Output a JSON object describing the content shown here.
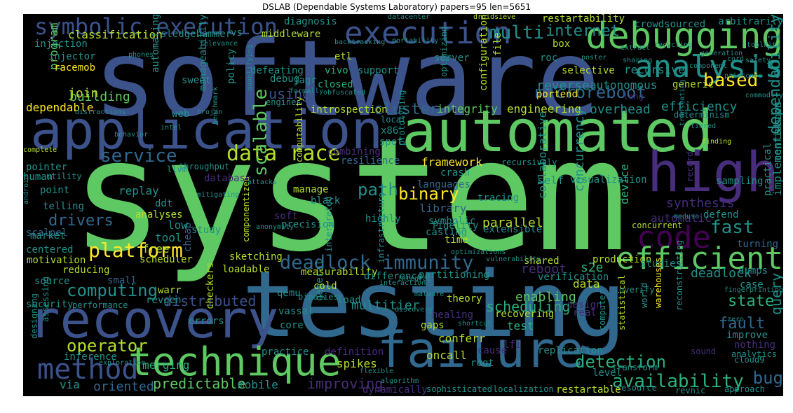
{
  "title": "DSLAB (Dependable Systems Laboratory) papers=95 len=5651",
  "palette": {
    "green": "#5ec962",
    "lime": "#b5de2b",
    "yellow": "#fde725",
    "teal": "#21918c",
    "teal_light": "#2ab07f",
    "blue": "#3b528b",
    "steel": "#31688e",
    "indigo": "#472d7b",
    "purple": "#440154",
    "background": "#000000"
  },
  "words": [
    {
      "text": "system",
      "color": "#5ec962"
    },
    {
      "text": "software",
      "color": "#3b528b"
    },
    {
      "text": "testing",
      "color": "#31688e"
    },
    {
      "text": "automated",
      "color": "#5ec962"
    },
    {
      "text": "application",
      "color": "#3b528b"
    },
    {
      "text": "recovery",
      "color": "#3b528b"
    },
    {
      "text": "high",
      "color": "#472d7b"
    },
    {
      "text": "failure",
      "color": "#31688e"
    },
    {
      "text": "technique",
      "color": "#5ec962"
    },
    {
      "text": "debugging",
      "color": "#5ec962"
    },
    {
      "text": "execution",
      "color": "#3b528b"
    },
    {
      "text": "analysis",
      "color": "#21918c"
    },
    {
      "text": "code",
      "color": "#440154"
    },
    {
      "text": "efficient",
      "color": "#5ec962"
    },
    {
      "text": "method",
      "color": "#3b528b"
    },
    {
      "text": "symbolic execution",
      "color": "#3b528b"
    },
    {
      "text": "deadlock immunity",
      "color": "#31688e"
    },
    {
      "text": "platform",
      "color": "#fde725"
    },
    {
      "text": "data race",
      "color": "#b5de2b"
    },
    {
      "text": "service",
      "color": "#31688e"
    },
    {
      "text": "multi",
      "color": "#21918c"
    },
    {
      "text": "internet",
      "color": "#21918c"
    },
    {
      "text": "microreboot",
      "color": "#31688e"
    },
    {
      "text": "based",
      "color": "#fde725"
    },
    {
      "text": "fast",
      "color": "#21918c"
    },
    {
      "text": "dependability",
      "color": "#21918c"
    },
    {
      "text": "scalable",
      "color": "#5ec962"
    },
    {
      "text": "path",
      "color": "#21918c"
    },
    {
      "text": "binary",
      "color": "#fde725"
    },
    {
      "text": "operator",
      "color": "#b5de2b"
    },
    {
      "text": "availability",
      "color": "#2ab07f"
    },
    {
      "text": "detection",
      "color": "#2ab07f"
    },
    {
      "text": "bug",
      "color": "#31688e"
    },
    {
      "text": "computing",
      "color": "#21918c"
    },
    {
      "text": "cluster",
      "color": "#31688e"
    },
    {
      "text": "integrity",
      "color": "#5ec962"
    },
    {
      "text": "engineering",
      "color": "#b5de2b"
    },
    {
      "text": "overhead",
      "color": "#21918c"
    },
    {
      "text": "efficiency",
      "color": "#21918c"
    },
    {
      "text": "drivers",
      "color": "#31688e"
    },
    {
      "text": "predictable",
      "color": "#5ec962"
    },
    {
      "text": "oriented",
      "color": "#31688e"
    },
    {
      "text": "improving",
      "color": "#472d7b"
    },
    {
      "text": "mobile",
      "color": "#21918c"
    },
    {
      "text": "via",
      "color": "#21918c"
    },
    {
      "text": "merging",
      "color": "#2ab07f"
    },
    {
      "text": "multitier",
      "color": "#21918c"
    },
    {
      "text": "scheduling",
      "color": "#2ab07f"
    },
    {
      "text": "enabling",
      "color": "#5ec962"
    },
    {
      "text": "distributed",
      "color": "#3b528b"
    },
    {
      "text": "state",
      "color": "#2ab07f"
    },
    {
      "text": "fault",
      "color": "#31688e"
    },
    {
      "text": "query",
      "color": "#21918c"
    },
    {
      "text": "parallel",
      "color": "#b5de2b"
    },
    {
      "text": "library",
      "color": "#31688e"
    },
    {
      "text": "reboot",
      "color": "#472d7b"
    },
    {
      "text": "s2e",
      "color": "#2ab07f"
    },
    {
      "text": "deadlock",
      "color": "#21918c"
    },
    {
      "text": "synthesis",
      "color": "#472d7b"
    },
    {
      "text": "automatic",
      "color": "#472d7b"
    },
    {
      "text": "concurrency",
      "color": "#21918c"
    },
    {
      "text": "classification",
      "color": "#b5de2b"
    },
    {
      "text": "using",
      "color": "#3b528b"
    },
    {
      "text": "program",
      "color": "#5ec962"
    },
    {
      "text": "building",
      "color": "#5ec962"
    },
    {
      "text": "join",
      "color": "#b5de2b"
    },
    {
      "text": "dependable",
      "color": "#fde725"
    },
    {
      "text": "pointer",
      "color": "#21918c"
    },
    {
      "text": "replay",
      "color": "#21918c"
    },
    {
      "text": "point",
      "color": "#21918c"
    },
    {
      "text": "telling",
      "color": "#21918c"
    },
    {
      "text": "scalpel",
      "color": "#31688e"
    },
    {
      "text": "framework",
      "color": "#fde725"
    },
    {
      "text": "self",
      "color": "#21918c"
    },
    {
      "text": "reverse",
      "color": "#21918c"
    },
    {
      "text": "autonomous",
      "color": "#21918c"
    },
    {
      "text": "portend",
      "color": "#fde725"
    },
    {
      "text": "generic",
      "color": "#b5de2b"
    },
    {
      "text": "recursive",
      "color": "#21918c"
    },
    {
      "text": "collaborative",
      "color": "#21918c"
    },
    {
      "text": "implementation",
      "color": "#21918c"
    },
    {
      "text": "confidence",
      "color": "#21918c"
    },
    {
      "text": "test",
      "color": "#2ab07f"
    },
    {
      "text": "crash",
      "color": "#21918c"
    },
    {
      "text": "sledgehammer",
      "color": "#21918c"
    },
    {
      "text": "middleware",
      "color": "#b5de2b"
    },
    {
      "text": "injection",
      "color": "#21918c"
    },
    {
      "text": "injector",
      "color": "#21918c"
    },
    {
      "text": "racemob",
      "color": "#fde725"
    },
    {
      "text": "debug",
      "color": "#21918c"
    },
    {
      "text": "policy",
      "color": "#21918c"
    },
    {
      "text": "jagr",
      "color": "#21918c"
    },
    {
      "text": "closed",
      "color": "#2ab07f"
    },
    {
      "text": "server",
      "color": "#21918c"
    },
    {
      "text": "vivo",
      "color": "#2ab07f"
    },
    {
      "text": "support",
      "color": "#21918c"
    },
    {
      "text": "introspection",
      "color": "#b5de2b"
    },
    {
      "text": "x86",
      "color": "#21918c"
    },
    {
      "text": "spot",
      "color": "#21918c"
    },
    {
      "text": "resilience",
      "color": "#31688e"
    },
    {
      "text": "combining",
      "color": "#472d7b"
    },
    {
      "text": "languages",
      "color": "#31688e"
    },
    {
      "text": "tracing",
      "color": "#21918c"
    },
    {
      "text": "visualization",
      "color": "#21918c"
    },
    {
      "text": "sampling",
      "color": "#21918c"
    },
    {
      "text": "record",
      "color": "#472d7b"
    },
    {
      "text": "device",
      "color": "#2ab07f"
    },
    {
      "text": "concurrent",
      "color": "#b5de2b"
    },
    {
      "text": "defend",
      "color": "#21918c"
    },
    {
      "text": "practical",
      "color": "#21918c"
    },
    {
      "text": "turning",
      "color": "#31688e"
    },
    {
      "text": "production",
      "color": "#b5de2b"
    },
    {
      "text": "dumps",
      "color": "#21918c"
    },
    {
      "text": "case",
      "color": "#21918c"
    },
    {
      "text": "verification",
      "color": "#21918c"
    },
    {
      "text": "shared",
      "color": "#b5de2b"
    },
    {
      "text": "design",
      "color": "#472d7b"
    },
    {
      "text": "real",
      "color": "#472d7b"
    },
    {
      "text": "studies",
      "color": "#21918c"
    },
    {
      "text": "data",
      "color": "#b5de2b"
    },
    {
      "text": "level",
      "color": "#21918c"
    },
    {
      "text": "improve",
      "color": "#21918c"
    },
    {
      "text": "nothing",
      "color": "#472d7b"
    },
    {
      "text": "analytics",
      "color": "#21918c"
    },
    {
      "text": "sound",
      "color": "#472d7b"
    },
    {
      "text": "cloud9",
      "color": "#21918c"
    },
    {
      "text": "transform",
      "color": "#21918c"
    },
    {
      "text": "resource",
      "color": "#21918c"
    },
    {
      "text": "revnic",
      "color": "#21918c"
    },
    {
      "text": "restartable",
      "color": "#b5de2b"
    },
    {
      "text": "approach",
      "color": "#21918c"
    },
    {
      "text": "localization",
      "color": "#21918c"
    },
    {
      "text": "sophisticated",
      "color": "#21918c"
    },
    {
      "text": "dynamically",
      "color": "#472d7b"
    },
    {
      "text": "replication",
      "color": "#21918c"
    },
    {
      "text": "cause",
      "color": "#472d7b"
    },
    {
      "text": "root",
      "color": "#21918c"
    },
    {
      "text": "oncall",
      "color": "#b5de2b"
    },
    {
      "text": "conferr",
      "color": "#b5de2b"
    },
    {
      "text": "spikes",
      "color": "#b5de2b"
    },
    {
      "text": "definition",
      "color": "#472d7b"
    },
    {
      "text": "general",
      "color": "#21918c"
    },
    {
      "text": "gaps",
      "color": "#b5de2b"
    },
    {
      "text": "healing",
      "color": "#472d7b"
    },
    {
      "text": "theory",
      "color": "#b5de2b"
    },
    {
      "text": "recovering",
      "color": "#b5de2b"
    },
    {
      "text": "load",
      "color": "#21918c"
    },
    {
      "text": "errors",
      "color": "#21918c"
    },
    {
      "text": "checkers",
      "color": "#b5de2b"
    },
    {
      "text": "core",
      "color": "#21918c"
    },
    {
      "text": "vassal",
      "color": "#21918c"
    },
    {
      "text": "qemu",
      "color": "#21918c"
    },
    {
      "text": "revgen",
      "color": "#21918c"
    },
    {
      "text": "warr",
      "color": "#b5de2b"
    },
    {
      "text": "small",
      "color": "#31688e"
    },
    {
      "text": "loadable",
      "color": "#b5de2b"
    },
    {
      "text": "cold",
      "color": "#b5de2b"
    },
    {
      "text": "measurability",
      "color": "#b5de2b"
    },
    {
      "text": "difference",
      "color": "#21918c"
    },
    {
      "text": "partitioning",
      "color": "#21918c"
    },
    {
      "text": "sketching",
      "color": "#b5de2b"
    },
    {
      "text": "scheduler",
      "color": "#b5de2b"
    },
    {
      "text": "cheap",
      "color": "#31688e"
    },
    {
      "text": "free",
      "color": "#b5de2b"
    },
    {
      "text": "tool",
      "color": "#21918c"
    },
    {
      "text": "low",
      "color": "#21918c"
    },
    {
      "text": "study",
      "color": "#21918c"
    },
    {
      "text": "precision",
      "color": "#21918c"
    },
    {
      "text": "soft",
      "color": "#472d7b"
    },
    {
      "text": "symbolic",
      "color": "#21918c"
    },
    {
      "text": "casting",
      "color": "#21918c"
    },
    {
      "text": "time",
      "color": "#b5de2b"
    },
    {
      "text": "fidelity",
      "color": "#21918c"
    },
    {
      "text": "extensible",
      "color": "#21918c"
    },
    {
      "text": "highly",
      "color": "#21918c"
    },
    {
      "text": "interpreted",
      "color": "#21918c"
    },
    {
      "text": "componentized",
      "color": "#b5de2b"
    },
    {
      "text": "reducing",
      "color": "#b5de2b"
    },
    {
      "text": "motivation",
      "color": "#b5de2b"
    },
    {
      "text": "source",
      "color": "#21918c"
    },
    {
      "text": "security",
      "color": "#21918c"
    },
    {
      "text": "market",
      "color": "#21918c"
    },
    {
      "text": "centered",
      "color": "#21918c"
    },
    {
      "text": "analyses",
      "color": "#b5de2b"
    },
    {
      "text": "ddt",
      "color": "#21918c"
    },
    {
      "text": "human",
      "color": "#21918c"
    },
    {
      "text": "database",
      "color": "#472d7b"
    },
    {
      "text": "manage",
      "color": "#b5de2b"
    },
    {
      "text": "black",
      "color": "#21918c"
    },
    {
      "text": "web",
      "color": "#21918c"
    },
    {
      "text": "sweet",
      "color": "#21918c"
    },
    {
      "text": "defeating",
      "color": "#21918c"
    },
    {
      "text": "etl",
      "color": "#b5de2b"
    },
    {
      "text": "diagnosis",
      "color": "#21918c"
    },
    {
      "text": "vs",
      "color": "#21918c"
    },
    {
      "text": "box",
      "color": "#b5de2b"
    },
    {
      "text": "roc",
      "color": "#21918c"
    },
    {
      "text": "selective",
      "color": "#b5de2b"
    },
    {
      "text": "file",
      "color": "#b5de2b"
    },
    {
      "text": "configuration",
      "color": "#b5de2b"
    },
    {
      "text": "optimizing",
      "color": "#21918c"
    },
    {
      "text": "crowdsourced",
      "color": "#21918c"
    },
    {
      "text": "arbitrarily",
      "color": "#21918c"
    },
    {
      "text": "restartability",
      "color": "#b5de2b"
    },
    {
      "text": "statistical",
      "color": "#b5de2b"
    },
    {
      "text": "warehouses",
      "color": "#fde725"
    },
    {
      "text": "world",
      "color": "#21918c"
    },
    {
      "text": "computer",
      "color": "#21918c"
    },
    {
      "text": "lfi",
      "color": "#472d7b"
    },
    {
      "text": "reconstructing",
      "color": "#21918c"
    },
    {
      "text": "designing",
      "color": "#21918c"
    },
    {
      "text": "assessing",
      "color": "#21918c"
    },
    {
      "text": "inference",
      "color": "#21918c"
    },
    {
      "text": "practice",
      "color": "#21918c"
    },
    {
      "text": "automating",
      "color": "#21918c"
    },
    {
      "text": "manageability",
      "color": "#21918c"
    },
    {
      "text": "utility",
      "color": "#21918c"
    },
    {
      "text": "engines",
      "color": "#21918c"
    },
    {
      "text": "complete",
      "color": "#b5de2b"
    },
    {
      "text": "finding",
      "color": "#b5de2b"
    },
    {
      "text": "long",
      "color": "#472d7b"
    },
    {
      "text": "llvm",
      "color": "#21918c"
    },
    {
      "text": "performance",
      "color": "#21918c"
    },
    {
      "text": "binaries",
      "color": "#21918c"
    },
    {
      "text": "infrastructure",
      "color": "#21918c"
    },
    {
      "text": "prototyping",
      "color": "#21918c"
    },
    {
      "text": "computability",
      "color": "#b5de2b"
    },
    {
      "text": "throughput",
      "color": "#21918c"
    },
    {
      "text": "quantifying",
      "color": "#21918c"
    },
    {
      "text": "droidsieve",
      "color": "#b5de2b"
    },
    {
      "text": "mitigating",
      "color": "#21918c"
    },
    {
      "text": "anonymity",
      "color": "#21918c"
    },
    {
      "text": "sharing",
      "color": "#21918c"
    },
    {
      "text": "distractions",
      "color": "#21918c"
    },
    {
      "text": "trojan",
      "color": "#21918c"
    },
    {
      "text": "fingerprinting",
      "color": "#21918c"
    },
    {
      "text": "medusa",
      "color": "#21918c"
    },
    {
      "text": "recursively",
      "color": "#21918c"
    },
    {
      "text": "determinism",
      "color": "#21918c"
    },
    {
      "text": "commodity",
      "color": "#21918c"
    },
    {
      "text": "generation",
      "color": "#21918c"
    },
    {
      "text": "safety",
      "color": "#21918c"
    },
    {
      "text": "phones",
      "color": "#21918c"
    },
    {
      "text": "android",
      "color": "#21918c"
    },
    {
      "text": "zero",
      "color": "#21918c"
    },
    {
      "text": "behavior",
      "color": "#21918c"
    },
    {
      "text": "overify",
      "color": "#21918c"
    },
    {
      "text": "attacks",
      "color": "#21918c"
    },
    {
      "text": "flexible",
      "color": "#21918c"
    },
    {
      "text": "translating",
      "color": "#21918c"
    },
    {
      "text": "toolkit",
      "color": "#21918c"
    },
    {
      "text": "local",
      "color": "#21918c"
    },
    {
      "text": "poster",
      "color": "#21918c"
    },
    {
      "text": "benchmark",
      "color": "#21918c"
    },
    {
      "text": "tiered",
      "color": "#21918c"
    },
    {
      "text": "component",
      "color": "#21918c"
    },
    {
      "text": "intel",
      "color": "#21918c"
    },
    {
      "text": "interaction",
      "color": "#21918c"
    },
    {
      "text": "malware",
      "color": "#21918c"
    },
    {
      "text": "discovery",
      "color": "#21918c"
    },
    {
      "text": "vulnerability",
      "color": "#21918c"
    },
    {
      "text": "shortcut",
      "color": "#21918c"
    },
    {
      "text": "integral",
      "color": "#21918c"
    },
    {
      "text": "optimizations",
      "color": "#21918c"
    },
    {
      "text": "algorithm",
      "color": "#21918c"
    },
    {
      "text": "exploration",
      "color": "#21918c"
    },
    {
      "text": "cord",
      "color": "#21918c"
    },
    {
      "text": "backtracking",
      "color": "#21918c"
    },
    {
      "text": "relevance",
      "color": "#21918c"
    },
    {
      "text": "portability",
      "color": "#21918c"
    },
    {
      "text": "formally",
      "color": "#21918c"
    },
    {
      "text": "obfuscated",
      "color": "#21918c"
    },
    {
      "text": "recycling",
      "color": "#21918c"
    },
    {
      "text": "extract",
      "color": "#21918c"
    },
    {
      "text": "painscore",
      "color": "#21918c"
    },
    {
      "text": "datacenter",
      "color": "#21918c"
    }
  ]
}
